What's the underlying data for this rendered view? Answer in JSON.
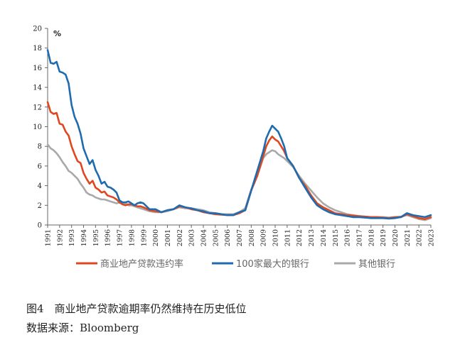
{
  "caption": {
    "figure_title": "图4　商业地产贷款逾期率仍然维持在历史低位",
    "source": "数据来源：Bloomberg"
  },
  "chart_data": {
    "type": "line",
    "unit_label": "%",
    "ylim": [
      0,
      20
    ],
    "y_ticks": [
      0,
      2,
      4,
      6,
      8,
      10,
      12,
      14,
      16,
      18,
      20
    ],
    "x_ticks": [
      "1991",
      "1992",
      "1993",
      "1994",
      "1995",
      "1996",
      "1997",
      "1998",
      "1999",
      "2000",
      "2001",
      "2002",
      "2003",
      "2004",
      "2005",
      "2006",
      "2007",
      "2008",
      "2009",
      "2010",
      "2011",
      "2012",
      "2013",
      "2014",
      "2015",
      "2016",
      "2017",
      "2018",
      "2019",
      "2020",
      "2021",
      "2022",
      "2023"
    ],
    "xlim": [
      1991,
      2023
    ],
    "grid": false,
    "legend_position": "bottom",
    "series": [
      {
        "name": "商业地产贷款违约率",
        "color": "#e0471e",
        "x": [
          1991.0,
          1991.25,
          1991.5,
          1991.75,
          1992.0,
          1992.25,
          1992.5,
          1992.75,
          1993.0,
          1993.25,
          1993.5,
          1993.75,
          1994.0,
          1994.25,
          1994.5,
          1994.75,
          1995.0,
          1995.25,
          1995.5,
          1995.75,
          1996.0,
          1996.25,
          1996.5,
          1996.75,
          1997.0,
          1997.25,
          1997.5,
          1997.75,
          1998.0,
          1998.25,
          1998.5,
          1998.75,
          1999.0,
          1999.5,
          2000.0,
          2000.5,
          2001.0,
          2001.5,
          2002.0,
          2002.5,
          2003.0,
          2003.5,
          2004.0,
          2004.5,
          2005.0,
          2005.5,
          2006.0,
          2006.5,
          2007.0,
          2007.5,
          2008.0,
          2008.5,
          2009.0,
          2009.25,
          2009.5,
          2009.75,
          2010.0,
          2010.25,
          2010.5,
          2010.75,
          2011.0,
          2011.5,
          2012.0,
          2012.5,
          2013.0,
          2013.5,
          2014.0,
          2014.5,
          2015.0,
          2015.5,
          2016.0,
          2016.5,
          2017.0,
          2017.5,
          2018.0,
          2018.5,
          2019.0,
          2019.5,
          2020.0,
          2020.5,
          2021.0,
          2021.5,
          2022.0,
          2022.5,
          2023.0
        ],
        "values": [
          12.5,
          11.5,
          11.3,
          11.4,
          10.3,
          10.2,
          9.5,
          9.1,
          8.0,
          7.2,
          6.5,
          6.3,
          5.3,
          4.7,
          4.2,
          4.5,
          3.8,
          3.6,
          3.3,
          3.4,
          3.0,
          2.9,
          2.8,
          2.6,
          2.3,
          2.1,
          2.0,
          2.1,
          2.1,
          2.0,
          1.9,
          1.9,
          1.8,
          1.5,
          1.4,
          1.3,
          1.5,
          1.6,
          1.9,
          1.8,
          1.6,
          1.5,
          1.3,
          1.2,
          1.1,
          1.05,
          1.0,
          1.0,
          1.2,
          1.5,
          3.5,
          5.0,
          7.0,
          8.0,
          8.6,
          9.0,
          8.7,
          8.5,
          8.0,
          7.5,
          6.8,
          6.0,
          4.8,
          4.0,
          3.0,
          2.2,
          1.8,
          1.5,
          1.2,
          1.1,
          1.0,
          0.95,
          0.9,
          0.85,
          0.8,
          0.8,
          0.75,
          0.7,
          0.8,
          0.8,
          1.1,
          0.9,
          0.7,
          0.6,
          0.8
        ]
      },
      {
        "name": "100家最大的银行",
        "color": "#1f6bb0",
        "x": [
          1991.0,
          1991.25,
          1991.5,
          1991.75,
          1992.0,
          1992.25,
          1992.5,
          1992.75,
          1993.0,
          1993.25,
          1993.5,
          1993.75,
          1994.0,
          1994.25,
          1994.5,
          1994.75,
          1995.0,
          1995.25,
          1995.5,
          1995.75,
          1996.0,
          1996.25,
          1996.5,
          1996.75,
          1997.0,
          1997.25,
          1997.5,
          1997.75,
          1998.0,
          1998.25,
          1998.5,
          1998.75,
          1999.0,
          1999.5,
          2000.0,
          2000.5,
          2001.0,
          2001.5,
          2002.0,
          2002.5,
          2003.0,
          2003.5,
          2004.0,
          2004.5,
          2005.0,
          2005.5,
          2006.0,
          2006.5,
          2007.0,
          2007.5,
          2008.0,
          2008.5,
          2009.0,
          2009.25,
          2009.5,
          2009.75,
          2010.0,
          2010.25,
          2010.5,
          2010.75,
          2011.0,
          2011.5,
          2012.0,
          2012.5,
          2013.0,
          2013.5,
          2014.0,
          2014.5,
          2015.0,
          2015.5,
          2016.0,
          2016.5,
          2017.0,
          2017.5,
          2018.0,
          2018.5,
          2019.0,
          2019.5,
          2020.0,
          2020.5,
          2021.0,
          2021.5,
          2022.0,
          2022.5,
          2023.0
        ],
        "values": [
          17.8,
          16.5,
          16.4,
          16.6,
          15.6,
          15.5,
          15.3,
          14.4,
          12.2,
          11.0,
          10.3,
          9.3,
          7.8,
          7.0,
          6.2,
          6.6,
          5.6,
          5.0,
          4.2,
          4.4,
          3.9,
          3.8,
          3.6,
          3.3,
          2.5,
          2.3,
          2.3,
          2.4,
          2.2,
          2.0,
          2.2,
          2.3,
          2.2,
          1.6,
          1.6,
          1.3,
          1.5,
          1.6,
          2.0,
          1.8,
          1.7,
          1.5,
          1.4,
          1.2,
          1.2,
          1.1,
          1.0,
          1.0,
          1.3,
          1.5,
          3.5,
          5.5,
          7.5,
          8.8,
          9.5,
          10.1,
          9.8,
          9.5,
          8.8,
          8.0,
          6.8,
          6.0,
          4.8,
          3.8,
          2.8,
          2.0,
          1.6,
          1.3,
          1.1,
          1.0,
          0.9,
          0.8,
          0.8,
          0.75,
          0.7,
          0.7,
          0.7,
          0.65,
          0.7,
          0.8,
          1.2,
          1.0,
          0.9,
          0.8,
          1.0
        ]
      },
      {
        "name": "其他银行",
        "color": "#a9a9a9",
        "x": [
          1991.0,
          1991.25,
          1991.5,
          1991.75,
          1992.0,
          1992.25,
          1992.5,
          1992.75,
          1993.0,
          1993.25,
          1993.5,
          1993.75,
          1994.0,
          1994.25,
          1994.5,
          1994.75,
          1995.0,
          1995.25,
          1995.5,
          1995.75,
          1996.0,
          1996.25,
          1996.5,
          1996.75,
          1997.0,
          1997.25,
          1997.5,
          1997.75,
          1998.0,
          1998.25,
          1998.5,
          1998.75,
          1999.0,
          1999.5,
          2000.0,
          2000.5,
          2001.0,
          2001.5,
          2002.0,
          2002.5,
          2003.0,
          2003.5,
          2004.0,
          2004.5,
          2005.0,
          2005.5,
          2006.0,
          2006.5,
          2007.0,
          2007.5,
          2008.0,
          2008.5,
          2009.0,
          2009.25,
          2009.5,
          2009.75,
          2010.0,
          2010.25,
          2010.5,
          2010.75,
          2011.0,
          2011.5,
          2012.0,
          2012.5,
          2013.0,
          2013.5,
          2014.0,
          2014.5,
          2015.0,
          2015.5,
          2016.0,
          2016.5,
          2017.0,
          2017.5,
          2018.0,
          2018.5,
          2019.0,
          2019.5,
          2020.0,
          2020.5,
          2021.0,
          2021.5,
          2022.0,
          2022.5,
          2023.0
        ],
        "values": [
          8.2,
          7.8,
          7.6,
          7.3,
          6.9,
          6.4,
          6.0,
          5.5,
          5.3,
          5.0,
          4.7,
          4.2,
          3.8,
          3.3,
          3.1,
          3.0,
          2.8,
          2.7,
          2.6,
          2.6,
          2.5,
          2.4,
          2.3,
          2.2,
          2.3,
          2.2,
          2.2,
          2.0,
          2.0,
          1.9,
          1.8,
          1.7,
          1.6,
          1.4,
          1.3,
          1.3,
          1.4,
          1.6,
          1.8,
          1.7,
          1.7,
          1.6,
          1.5,
          1.3,
          1.2,
          1.1,
          1.1,
          1.1,
          1.3,
          1.7,
          3.6,
          5.0,
          6.8,
          7.2,
          7.4,
          7.6,
          7.5,
          7.2,
          7.0,
          6.8,
          6.5,
          5.9,
          5.0,
          4.2,
          3.5,
          2.8,
          2.2,
          1.8,
          1.5,
          1.3,
          1.1,
          1.0,
          0.9,
          0.85,
          0.8,
          0.8,
          0.8,
          0.75,
          0.8,
          0.85,
          1.0,
          0.8,
          0.6,
          0.5,
          0.7
        ]
      }
    ]
  }
}
